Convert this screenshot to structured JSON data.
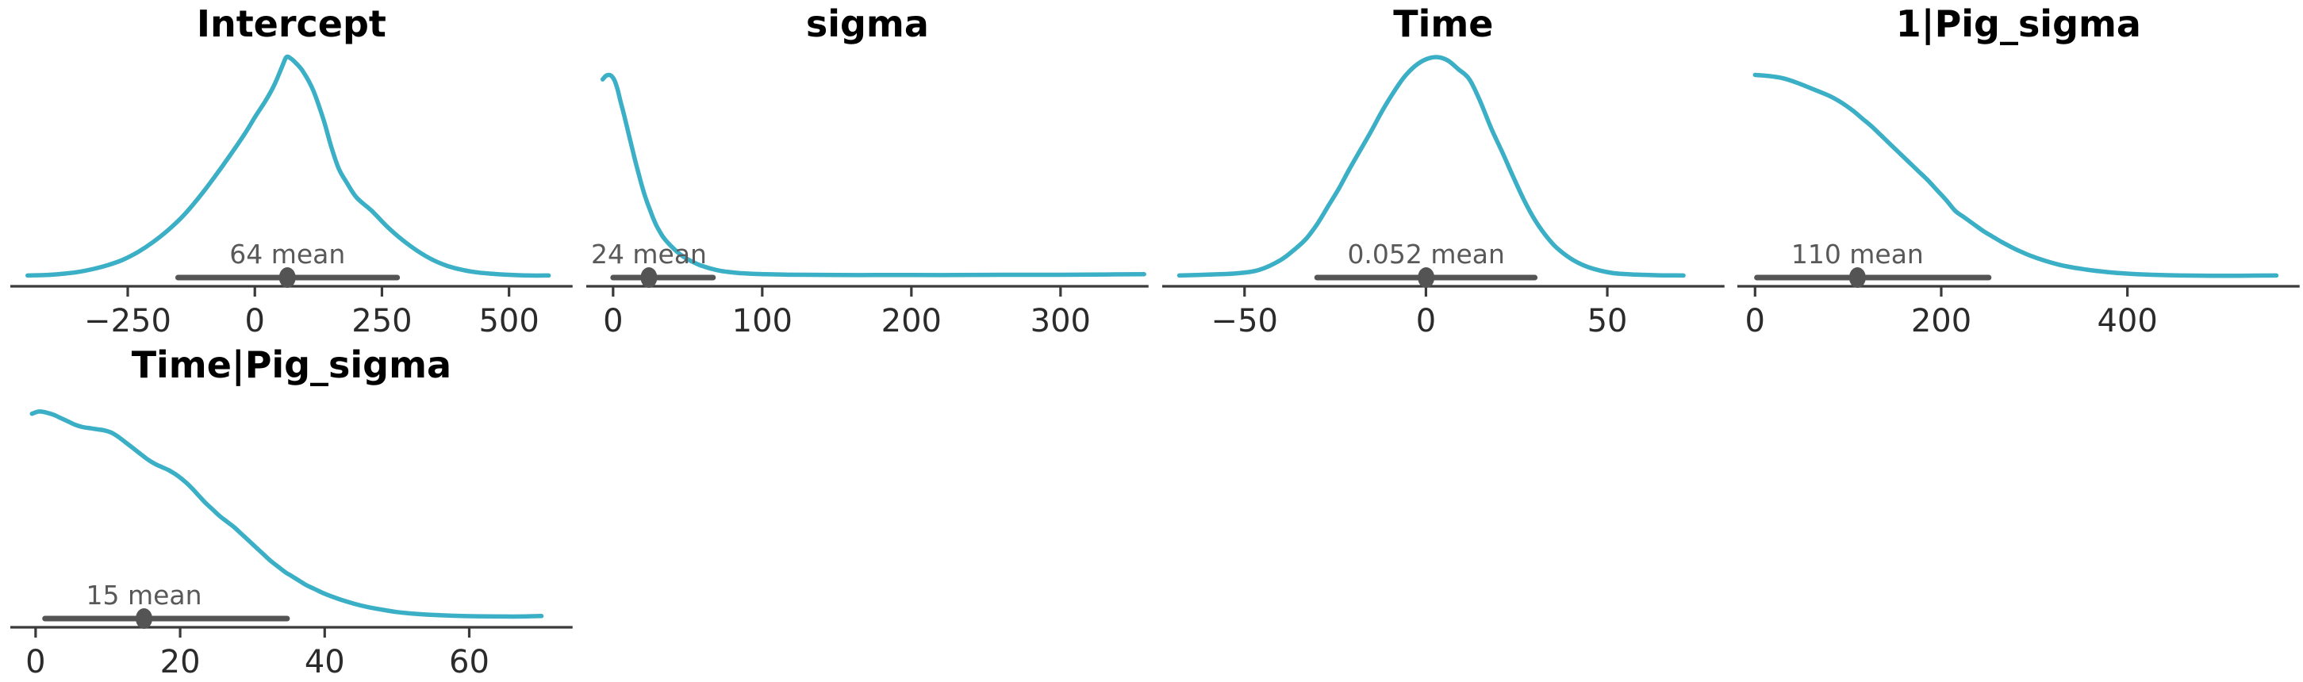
{
  "figure": {
    "background_color": "#ffffff",
    "curve_color": "#3BAFC6",
    "interval_color": "#545454",
    "axis_color": "#3a3a3a",
    "tick_label_color": "#2b2b2b",
    "title_color": "#000000",
    "mean_label_color": "#595959",
    "point_estimate": "mean"
  },
  "chart_data": [
    {
      "type": "density",
      "title": "Intercept",
      "mean": 64,
      "mean_label": "64 mean",
      "hdi": [
        -151,
        280
      ],
      "x_domain": [
        -481,
        625
      ],
      "x_ticks": [
        -250,
        0,
        250,
        500
      ],
      "x_tick_labels": [
        "−250",
        "0",
        "250",
        "500"
      ],
      "grid_position": {
        "row": 1,
        "col": 1
      },
      "kde_x": [
        -447,
        -410,
        -380,
        -350,
        -320,
        -290,
        -260,
        -230,
        -200,
        -170,
        -140,
        -110,
        -80,
        -50,
        -20,
        0,
        20,
        35,
        45,
        55,
        62,
        70,
        80,
        95,
        115,
        135,
        150,
        165,
        180,
        200,
        230,
        260,
        290,
        320,
        350,
        380,
        410,
        440,
        470,
        500,
        540,
        578
      ],
      "kde_density": [
        0.02,
        0.022,
        0.027,
        0.035,
        0.048,
        0.066,
        0.09,
        0.125,
        0.17,
        0.225,
        0.29,
        0.37,
        0.46,
        0.555,
        0.655,
        0.73,
        0.8,
        0.86,
        0.91,
        0.965,
        1.0,
        0.995,
        0.975,
        0.935,
        0.85,
        0.72,
        0.6,
        0.5,
        0.44,
        0.37,
        0.31,
        0.24,
        0.18,
        0.13,
        0.09,
        0.062,
        0.044,
        0.033,
        0.027,
        0.023,
        0.02,
        0.02
      ]
    },
    {
      "type": "density",
      "title": "sigma",
      "mean": 24,
      "mean_label": "24 mean",
      "hdi": [
        0,
        67
      ],
      "x_domain": [
        -18,
        359
      ],
      "x_ticks": [
        0,
        100,
        200,
        300
      ],
      "x_tick_labels": [
        "0",
        "100",
        "200",
        "300"
      ],
      "grid_position": {
        "row": 1,
        "col": 2
      },
      "kde_x": [
        -7,
        -5,
        -3,
        -1,
        1,
        3,
        5,
        7,
        9,
        11,
        13,
        15,
        17,
        19,
        21,
        23,
        25,
        27,
        29,
        31,
        33,
        35,
        38,
        41,
        44,
        47,
        50,
        54,
        58,
        62,
        66,
        71,
        77,
        84,
        92,
        102,
        115,
        130,
        150,
        175,
        200,
        230,
        260,
        290,
        320,
        356
      ],
      "kde_density": [
        0.9,
        0.915,
        0.92,
        0.915,
        0.895,
        0.855,
        0.8,
        0.75,
        0.695,
        0.64,
        0.585,
        0.53,
        0.48,
        0.43,
        0.385,
        0.345,
        0.31,
        0.275,
        0.245,
        0.22,
        0.198,
        0.18,
        0.158,
        0.138,
        0.12,
        0.105,
        0.093,
        0.079,
        0.067,
        0.058,
        0.05,
        0.042,
        0.036,
        0.031,
        0.028,
        0.026,
        0.024,
        0.023,
        0.022,
        0.022,
        0.022,
        0.022,
        0.023,
        0.023,
        0.024,
        0.026
      ]
    },
    {
      "type": "density",
      "title": "Time",
      "mean": 0.052,
      "mean_label": "0.052 mean",
      "hdi": [
        -30,
        30
      ],
      "x_domain": [
        -72.7,
        82.3
      ],
      "x_ticks": [
        -50,
        0,
        50
      ],
      "x_tick_labels": [
        "−50",
        "0",
        "50"
      ],
      "grid_position": {
        "row": 1,
        "col": 3
      },
      "kde_x": [
        -68,
        -60,
        -52,
        -46,
        -40,
        -36,
        -33,
        -30,
        -27,
        -24,
        -21,
        -18,
        -15,
        -12,
        -9,
        -6,
        -3,
        0,
        3,
        6,
        9,
        12,
        15,
        18,
        21,
        24,
        27,
        30,
        33,
        36,
        40,
        44,
        48,
        52,
        58,
        64,
        71
      ],
      "kde_density": [
        0.02,
        0.024,
        0.03,
        0.045,
        0.09,
        0.14,
        0.185,
        0.25,
        0.33,
        0.41,
        0.5,
        0.585,
        0.67,
        0.76,
        0.84,
        0.91,
        0.96,
        0.99,
        1.0,
        0.985,
        0.945,
        0.9,
        0.8,
        0.68,
        0.575,
        0.465,
        0.36,
        0.27,
        0.2,
        0.145,
        0.095,
        0.062,
        0.042,
        0.03,
        0.024,
        0.021,
        0.02
      ]
    },
    {
      "type": "density",
      "title": "1|Pig_sigma",
      "mean": 110,
      "mean_label": "110 mean",
      "hdi": [
        2,
        251
      ],
      "x_domain": [
        -19,
        585
      ],
      "x_ticks": [
        0,
        200,
        400
      ],
      "x_tick_labels": [
        "0",
        "200",
        "400"
      ],
      "grid_position": {
        "row": 1,
        "col": 4
      },
      "kde_x": [
        0,
        15,
        30,
        45,
        60,
        75,
        85,
        95,
        105,
        115,
        125,
        135,
        145,
        155,
        165,
        175,
        185,
        195,
        205,
        215,
        225,
        235,
        245,
        255,
        265,
        275,
        285,
        295,
        310,
        325,
        340,
        355,
        370,
        390,
        410,
        435,
        460,
        490,
        520,
        560
      ],
      "kde_density": [
        0.92,
        0.915,
        0.905,
        0.885,
        0.86,
        0.835,
        0.815,
        0.79,
        0.76,
        0.725,
        0.69,
        0.65,
        0.61,
        0.57,
        0.53,
        0.49,
        0.45,
        0.405,
        0.36,
        0.31,
        0.28,
        0.25,
        0.22,
        0.195,
        0.17,
        0.148,
        0.128,
        0.11,
        0.088,
        0.07,
        0.057,
        0.047,
        0.039,
        0.031,
        0.026,
        0.022,
        0.02,
        0.019,
        0.019,
        0.02
      ]
    },
    {
      "type": "density",
      "title": "Time|Pig_sigma",
      "mean": 15,
      "mean_label": "15 mean",
      "hdi": [
        1.3,
        34.8
      ],
      "x_domain": [
        -3.5,
        74.3
      ],
      "x_ticks": [
        0,
        20,
        40,
        60
      ],
      "x_tick_labels": [
        "0",
        "20",
        "40",
        "60"
      ],
      "grid_position": {
        "row": 2,
        "col": 1
      },
      "kde_x": [
        -0.5,
        0.5,
        1.5,
        2.5,
        3.5,
        4.5,
        5.5,
        6.5,
        7.5,
        8.5,
        9.5,
        10.5,
        11.5,
        12.5,
        13.5,
        14.5,
        15.5,
        16.5,
        17.5,
        18.5,
        19.5,
        20.5,
        21.5,
        22.5,
        23.5,
        24.5,
        25.5,
        26.5,
        27.5,
        28.5,
        29.5,
        30.5,
        31.5,
        32.5,
        33.5,
        34.5,
        35.5,
        36.5,
        37.5,
        38.5,
        40,
        42,
        44,
        46,
        48,
        50,
        52.5,
        55,
        58,
        61,
        64,
        67,
        70
      ],
      "kde_density": [
        0.93,
        0.94,
        0.935,
        0.925,
        0.91,
        0.895,
        0.88,
        0.87,
        0.865,
        0.86,
        0.855,
        0.845,
        0.825,
        0.8,
        0.775,
        0.75,
        0.725,
        0.705,
        0.69,
        0.675,
        0.655,
        0.63,
        0.6,
        0.565,
        0.53,
        0.5,
        0.47,
        0.445,
        0.42,
        0.39,
        0.36,
        0.33,
        0.3,
        0.27,
        0.245,
        0.22,
        0.2,
        0.18,
        0.16,
        0.145,
        0.122,
        0.098,
        0.078,
        0.062,
        0.05,
        0.04,
        0.032,
        0.027,
        0.023,
        0.021,
        0.02,
        0.02,
        0.022
      ]
    }
  ]
}
